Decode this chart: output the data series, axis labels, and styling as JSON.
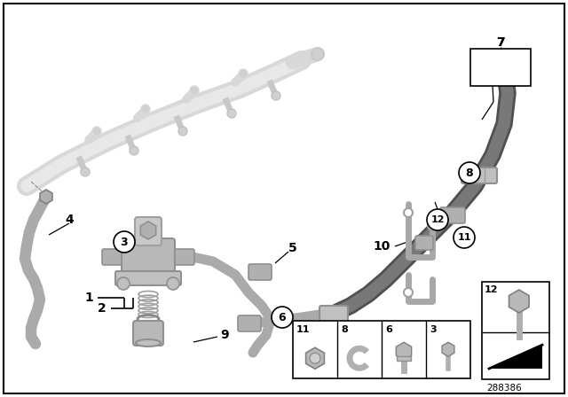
{
  "background_color": "#ffffff",
  "part_number": "288386",
  "figsize": [
    6.4,
    4.48
  ],
  "dpi": 100,
  "rail_color": "#d8d8d8",
  "tube_color": "#aaaaaa",
  "dark_tube_color": "#707070",
  "pump_color": "#b8b8b8",
  "label_color": "#000000",
  "box_color": "#000000"
}
